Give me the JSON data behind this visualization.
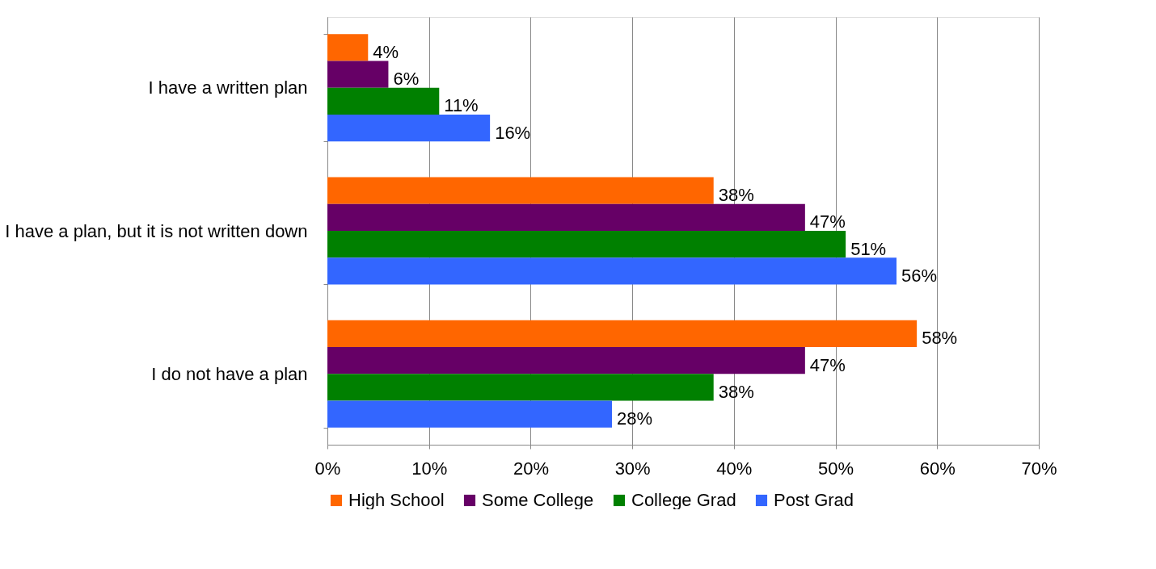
{
  "chart_data": {
    "type": "bar",
    "orientation": "horizontal",
    "categories": [
      "I have a written plan",
      "I have a plan, but it is not written down",
      "I do not have a plan"
    ],
    "series": [
      {
        "name": "High School",
        "color": "#ff6600",
        "values": [
          4,
          38,
          58
        ],
        "value_labels": [
          "4%",
          "38%",
          "58%"
        ]
      },
      {
        "name": "Some College",
        "color": "#660066",
        "values": [
          6,
          47,
          47
        ],
        "value_labels": [
          "6%",
          "47%",
          "47%"
        ]
      },
      {
        "name": "College Grad",
        "color": "#008000",
        "values": [
          11,
          51,
          38
        ],
        "value_labels": [
          "11%",
          "51%",
          "38%"
        ]
      },
      {
        "name": "Post Grad",
        "color": "#3366ff",
        "values": [
          16,
          56,
          28
        ],
        "value_labels": [
          "16%",
          "56%",
          "28%"
        ]
      }
    ],
    "xlim": [
      0,
      70
    ],
    "xticks": [
      {
        "value": 0,
        "label": "0%"
      },
      {
        "value": 10,
        "label": "10%"
      },
      {
        "value": 20,
        "label": "20%"
      },
      {
        "value": 30,
        "label": "30%"
      },
      {
        "value": 40,
        "label": "40%"
      },
      {
        "value": 50,
        "label": "50%"
      },
      {
        "value": 60,
        "label": "60%"
      },
      {
        "value": 70,
        "label": "70%"
      }
    ],
    "grid": "x",
    "legend": "bottom"
  }
}
